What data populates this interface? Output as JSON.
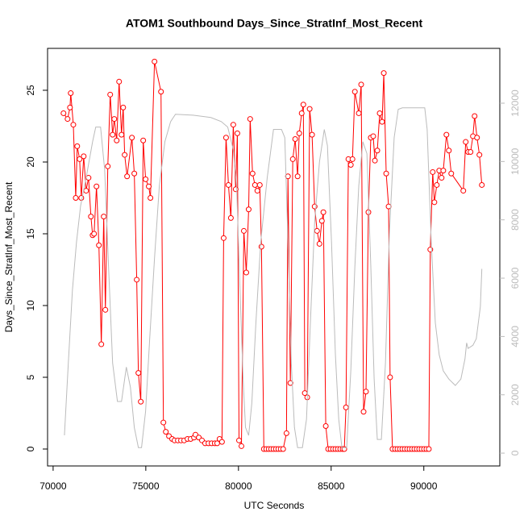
{
  "chart_data": {
    "type": "line",
    "title": "ATOM1 Southbound Days_Since_StratInf_Most_Recent",
    "xlabel": "UTC Seconds",
    "ylabel": "Days_Since_StratInf_Most_Recent",
    "xlim": [
      69700,
      94100
    ],
    "ylim": [
      -1.18,
      27.92
    ],
    "y2lim": [
      -440,
      13880
    ],
    "xticks": [
      70000,
      75000,
      80000,
      85000,
      90000
    ],
    "yticks": [
      0,
      5,
      10,
      15,
      20,
      25
    ],
    "y2ticks": [
      0,
      2000,
      4000,
      6000,
      8000,
      10000,
      12000
    ],
    "y2_tick_color": "#bbbbbb",
    "series": [
      {
        "color": "#ff0000",
        "marker": "circle",
        "x": [
          70560,
          70780,
          70910,
          70950,
          71090,
          71220,
          71300,
          71430,
          71520,
          71650,
          71780,
          71910,
          72040,
          72130,
          72210,
          72340,
          72470,
          72600,
          72730,
          72820,
          72950,
          73080,
          73210,
          73300,
          73430,
          73560,
          73690,
          73780,
          73860,
          73990,
          74250,
          74380,
          74510,
          74600,
          74730,
          74860,
          74990,
          75160,
          75250,
          75470,
          75820,
          75950,
          76080,
          76250,
          76420,
          76550,
          76730,
          76900,
          77070,
          77250,
          77420,
          77600,
          77680,
          77860,
          78030,
          78200,
          78380,
          78550,
          78720,
          78850,
          78980,
          79110,
          79200,
          79330,
          79460,
          79590,
          79720,
          79850,
          79940,
          80030,
          80160,
          80290,
          80420,
          80550,
          80630,
          80760,
          80890,
          81020,
          81150,
          81240,
          81370,
          81500,
          81630,
          81760,
          81890,
          82020,
          82150,
          82280,
          82410,
          82590,
          82670,
          82800,
          82930,
          83060,
          83190,
          83280,
          83410,
          83500,
          83580,
          83710,
          83840,
          83970,
          84110,
          84240,
          84370,
          84500,
          84580,
          84710,
          84840,
          84970,
          85100,
          85230,
          85360,
          85490,
          85620,
          85710,
          85800,
          85930,
          86060,
          86150,
          86280,
          86490,
          86620,
          86750,
          86880,
          87010,
          87140,
          87270,
          87360,
          87490,
          87620,
          87750,
          87840,
          87970,
          88100,
          88180,
          88310,
          88450,
          88580,
          88710,
          88840,
          88970,
          89100,
          89230,
          89360,
          89490,
          89620,
          89750,
          89880,
          90010,
          90140,
          90270,
          90350,
          90480,
          90570,
          90700,
          90830,
          90960,
          91050,
          91220,
          91350,
          91480,
          92130,
          92260,
          92390,
          92520,
          92650,
          92740,
          92870,
          93000,
          93130
        ],
        "values": [
          23.4,
          23.0,
          23.8,
          24.8,
          22.6,
          17.5,
          21.1,
          20.2,
          17.5,
          20.4,
          18.0,
          18.9,
          16.2,
          14.9,
          15.0,
          18.3,
          14.2,
          7.3,
          16.2,
          9.7,
          19.7,
          24.7,
          21.9,
          23.0,
          21.5,
          25.6,
          21.9,
          23.8,
          20.5,
          19.0,
          21.7,
          19.2,
          11.8,
          5.3,
          3.3,
          21.5,
          18.8,
          18.3,
          17.5,
          27.0,
          24.9,
          1.85,
          1.2,
          0.9,
          0.7,
          0.6,
          0.6,
          0.6,
          0.6,
          0.7,
          0.7,
          0.8,
          1.0,
          0.8,
          0.6,
          0.4,
          0.4,
          0.4,
          0.4,
          0.4,
          0.7,
          0.5,
          14.7,
          21.7,
          18.4,
          16.1,
          22.6,
          18.1,
          22.0,
          0.6,
          0.2,
          15.2,
          12.3,
          16.7,
          23.0,
          19.2,
          18.4,
          18.0,
          18.4,
          14.1,
          0,
          0,
          0,
          0,
          0,
          0,
          0,
          0,
          0,
          1.1,
          19.0,
          4.6,
          20.2,
          21.6,
          19.0,
          22.0,
          23.4,
          24.0,
          3.9,
          3.6,
          23.7,
          21.9,
          16.9,
          15.2,
          14.3,
          15.9,
          16.5,
          1.6,
          0,
          0,
          0,
          0,
          0,
          0,
          0,
          0,
          2.9,
          20.2,
          19.8,
          20.2,
          24.9,
          23.4,
          25.4,
          2.6,
          4.0,
          16.5,
          21.7,
          21.8,
          20.1,
          20.8,
          23.4,
          22.8,
          26.2,
          19.2,
          16.9,
          5.0,
          0,
          0,
          0,
          0,
          0,
          0,
          0,
          0,
          0,
          0,
          0,
          0,
          0,
          0,
          0,
          0,
          13.9,
          19.3,
          17.2,
          18.4,
          19.4,
          18.9,
          19.4,
          21.9,
          20.8,
          19.2,
          18.0,
          21.4,
          20.7,
          20.7,
          21.8,
          23.2,
          21.7,
          20.5,
          18.4
        ]
      },
      {
        "color": "#bbbbbb",
        "axis": "y2",
        "x": [
          70610,
          70820,
          71040,
          71260,
          71480,
          71820,
          72130,
          72300,
          72560,
          72780,
          72990,
          73210,
          73470,
          73690,
          73950,
          74170,
          74380,
          74600,
          74770,
          74990,
          75210,
          75470,
          75730,
          76030,
          76340,
          76600,
          77550,
          78510,
          79070,
          79420,
          79720,
          79900,
          80070,
          80250,
          80380,
          80550,
          80720,
          80940,
          81200,
          81550,
          81890,
          82320,
          82500,
          82670,
          82850,
          83020,
          83190,
          83450,
          83670,
          83880,
          84110,
          84370,
          84630,
          84800,
          85020,
          85230,
          85410,
          85580,
          85840,
          86060,
          86280,
          86490,
          86710,
          86930,
          87140,
          87320,
          87490,
          87710,
          87930,
          88140,
          88400,
          88620,
          88840,
          90050,
          90180,
          90400,
          90620,
          90830,
          91050,
          91350,
          91700,
          92000,
          92220,
          92310,
          92390,
          92650,
          92830,
          93050,
          93130
        ],
        "values": [
          610,
          3090,
          5580,
          7230,
          8470,
          9580,
          10680,
          11180,
          11180,
          9720,
          6400,
          3090,
          1770,
          1770,
          2950,
          2260,
          880,
          190,
          190,
          1440,
          3920,
          6680,
          9160,
          10680,
          11370,
          11620,
          11590,
          11510,
          11370,
          11180,
          10410,
          9160,
          5850,
          2540,
          880,
          610,
          1710,
          4470,
          7230,
          9440,
          11100,
          11100,
          10820,
          7230,
          3090,
          880,
          190,
          190,
          1160,
          4470,
          7920,
          9990,
          11100,
          10540,
          7230,
          3370,
          1160,
          190,
          190,
          2820,
          6400,
          9160,
          10680,
          10270,
          6400,
          2540,
          470,
          470,
          3090,
          7510,
          10820,
          11790,
          11840,
          11840,
          11100,
          7230,
          4470,
          3370,
          2820,
          2540,
          2320,
          2540,
          3230,
          3780,
          3590,
          3700,
          3920,
          5020,
          6320
        ]
      }
    ]
  }
}
